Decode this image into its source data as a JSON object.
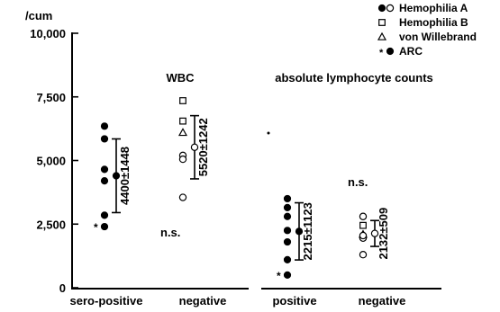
{
  "chart_data": {
    "type": "scatter",
    "ylabel": "/cum",
    "ylim": [
      0,
      10500
    ],
    "yticks": [
      {
        "value": 0,
        "label": "0"
      },
      {
        "value": 2500,
        "label": "2,500"
      },
      {
        "value": 5000,
        "label": "5,000"
      },
      {
        "value": 7500,
        "label": "7,500"
      },
      {
        "value": 10000,
        "label": "10,000"
      }
    ],
    "panels": [
      {
        "title": "WBC",
        "significance": "n.s.",
        "categories": [
          "sero-positive",
          "negative"
        ]
      },
      {
        "title": "absolute lymphocyte counts",
        "significance": "n.s.",
        "categories": [
          "positive",
          "negative"
        ]
      }
    ],
    "legend": [
      {
        "text": "Hemophilia A",
        "markers": [
          "filled-circle",
          "open-circle"
        ]
      },
      {
        "text": "Hemophilia B",
        "markers": [
          "open-square"
        ]
      },
      {
        "text": "von Willebrand",
        "markers": [
          "open-triangle"
        ]
      },
      {
        "text": "ARC",
        "markers": [
          "asterisk",
          "filled-circle"
        ]
      }
    ],
    "groups": [
      {
        "panel": 0,
        "slot": 0,
        "mean": 4400,
        "sd": 1448,
        "mean_marker": "filled-circle",
        "stat_text": "4400±1448",
        "points": [
          {
            "y": 6350,
            "marker": "filled-circle"
          },
          {
            "y": 5850,
            "marker": "filled-circle"
          },
          {
            "y": 4650,
            "marker": "filled-circle"
          },
          {
            "y": 4200,
            "marker": "filled-circle"
          },
          {
            "y": 2850,
            "marker": "filled-circle"
          },
          {
            "y": 2400,
            "marker": "filled-circle",
            "asterisk": true
          }
        ]
      },
      {
        "panel": 0,
        "slot": 1,
        "mean": 5520,
        "sd": 1242,
        "mean_marker": "open-circle",
        "stat_text": "5520±1242",
        "points": [
          {
            "y": 7350,
            "marker": "open-square"
          },
          {
            "y": 6550,
            "marker": "open-square"
          },
          {
            "y": 6100,
            "marker": "open-triangle"
          },
          {
            "y": 5200,
            "marker": "open-circle"
          },
          {
            "y": 5050,
            "marker": "open-circle"
          },
          {
            "y": 3550,
            "marker": "open-circle"
          }
        ]
      },
      {
        "panel": 1,
        "slot": 0,
        "mean": 2215,
        "sd": 1123,
        "mean_marker": "filled-circle",
        "stat_text": "2215±1123",
        "points": [
          {
            "y": 3500,
            "marker": "filled-circle"
          },
          {
            "y": 3150,
            "marker": "filled-circle"
          },
          {
            "y": 2800,
            "marker": "filled-circle"
          },
          {
            "y": 2250,
            "marker": "filled-circle"
          },
          {
            "y": 1800,
            "marker": "filled-circle"
          },
          {
            "y": 1100,
            "marker": "filled-circle"
          },
          {
            "y": 500,
            "marker": "filled-circle",
            "asterisk": true
          }
        ]
      },
      {
        "panel": 1,
        "slot": 1,
        "mean": 2132,
        "sd": 509,
        "mean_marker": "open-circle",
        "stat_text": "2132±509",
        "points": [
          {
            "y": 2800,
            "marker": "open-circle"
          },
          {
            "y": 2450,
            "marker": "open-square"
          },
          {
            "y": 2100,
            "marker": "open-triangle"
          },
          {
            "y": 1950,
            "marker": "open-circle"
          },
          {
            "y": 2050,
            "marker": "open-circle"
          },
          {
            "y": 1300,
            "marker": "open-circle"
          }
        ]
      }
    ]
  }
}
